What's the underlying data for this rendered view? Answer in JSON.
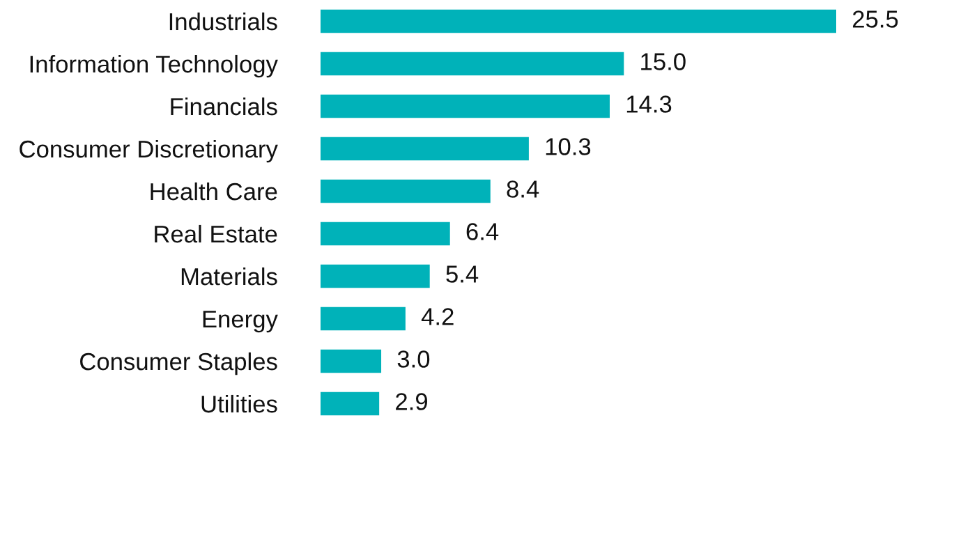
{
  "chart_data": {
    "type": "bar",
    "orientation": "horizontal",
    "categories": [
      "Industrials",
      "Information Technology",
      "Financials",
      "Consumer Discretionary",
      "Health Care",
      "Real Estate",
      "Materials",
      "Energy",
      "Consumer Staples",
      "Utilities"
    ],
    "values": [
      25.5,
      15.0,
      14.3,
      10.3,
      8.4,
      6.4,
      5.4,
      4.2,
      3.0,
      2.9
    ],
    "value_labels": [
      "25.5",
      "15.0",
      "14.3",
      "10.3",
      "8.4",
      "6.4",
      "5.4",
      "4.2",
      "3.0",
      "2.9"
    ],
    "color": "#00b2b9",
    "grid": false,
    "legend": false
  }
}
